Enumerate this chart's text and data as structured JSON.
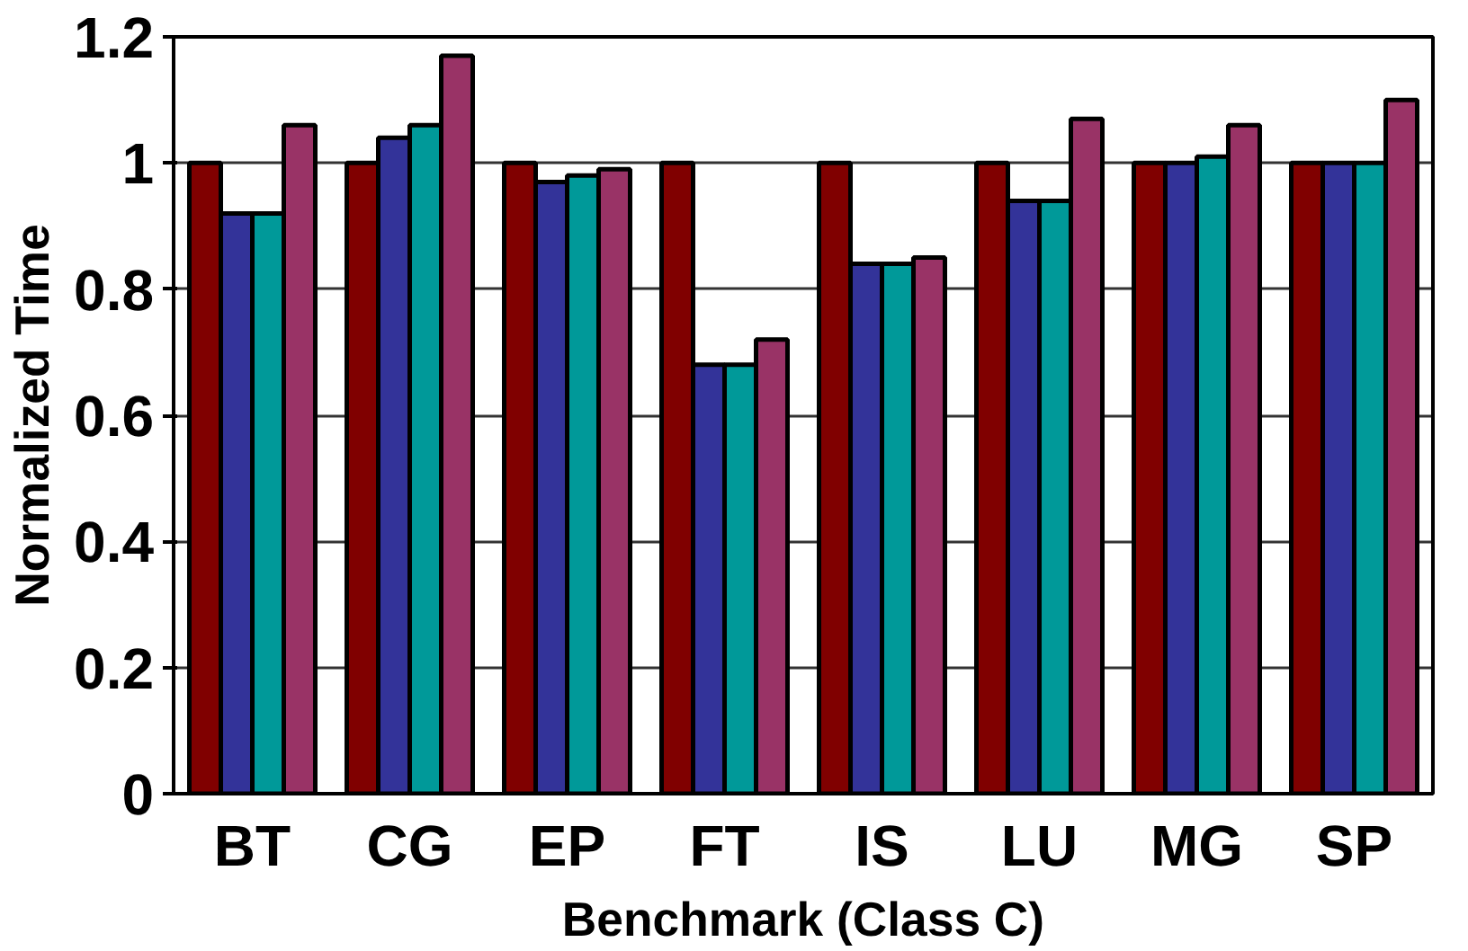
{
  "chart_data": {
    "type": "bar",
    "xlabel": "Benchmark (Class C)",
    "ylabel": "Normalized Time",
    "categories": [
      "BT",
      "CG",
      "EP",
      "FT",
      "IS",
      "LU",
      "MG",
      "SP"
    ],
    "series": [
      {
        "color": "#800000",
        "values": [
          1.0,
          1.0,
          1.0,
          1.0,
          1.0,
          1.0,
          1.0,
          1.0
        ]
      },
      {
        "color": "#333399",
        "values": [
          0.92,
          1.04,
          0.97,
          0.68,
          0.84,
          0.94,
          1.0,
          1.0
        ]
      },
      {
        "color": "#009999",
        "values": [
          0.92,
          1.06,
          0.98,
          0.68,
          0.84,
          0.94,
          1.01,
          1.0
        ]
      },
      {
        "color": "#993366",
        "values": [
          1.06,
          1.17,
          0.99,
          0.72,
          0.85,
          1.07,
          1.06,
          1.1
        ]
      }
    ],
    "ylim": [
      0,
      1.2
    ],
    "yticks": [
      0,
      0.2,
      0.4,
      0.6,
      0.8,
      1,
      1.2
    ],
    "grid": "y"
  }
}
